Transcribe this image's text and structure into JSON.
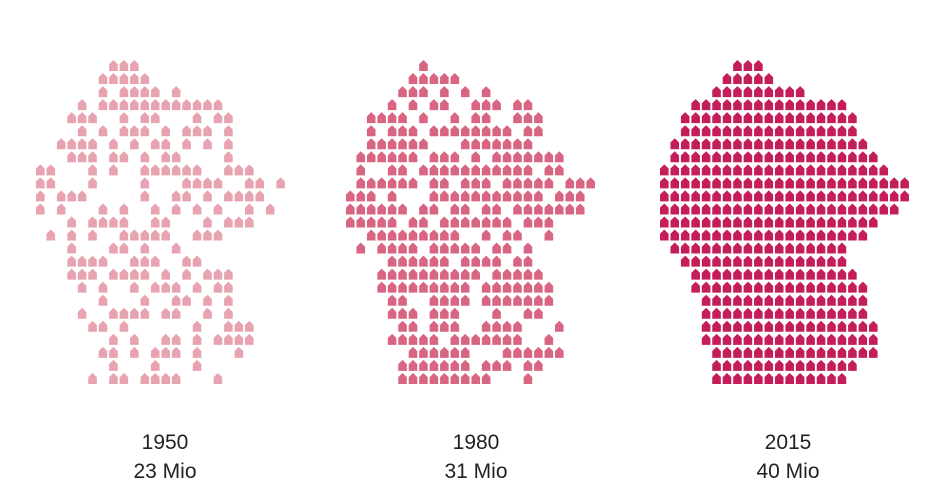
{
  "chart_data": {
    "type": "pictogram-map",
    "unit_icon": "house-icon",
    "grid": false,
    "legend": "none",
    "panels": [
      {
        "year": "1950",
        "value_label": "23 Mio",
        "value": 23,
        "unit": "Mio",
        "color": "#e8a3b0"
      },
      {
        "year": "1980",
        "value_label": "31 Mio",
        "value": 31,
        "unit": "Mio",
        "color": "#d86683"
      },
      {
        "year": "2015",
        "value_label": "40 Mio",
        "value": 40,
        "unit": "Mio",
        "color": "#c41e5a"
      }
    ]
  }
}
